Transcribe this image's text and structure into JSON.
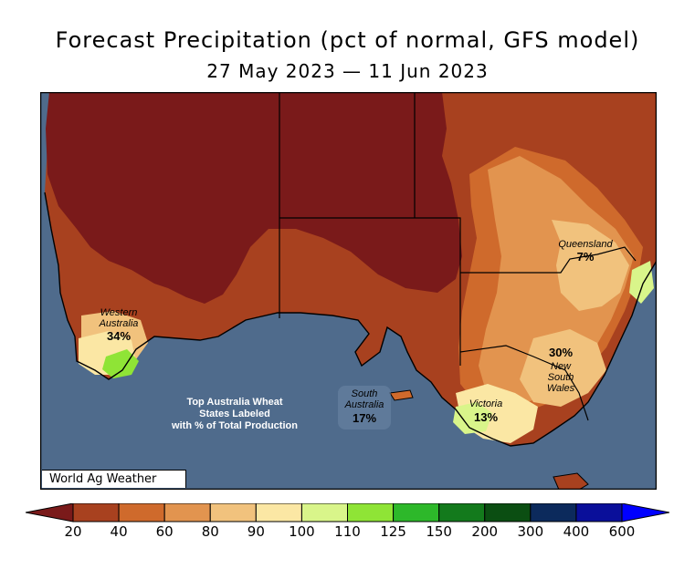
{
  "title": "Forecast Precipitation (pct of normal, GFS model)",
  "subtitle": "27 May 2023 — 11 Jun 2023",
  "credit": "World Ag Weather",
  "note_lines": [
    "Top Australia Wheat",
    "States Labeled",
    "with % of Total Production"
  ],
  "states": {
    "western_australia": {
      "name_lines": [
        "Western",
        "Australia"
      ],
      "pct": "34%"
    },
    "queensland": {
      "name_lines": [
        "Queensland"
      ],
      "pct": "7%"
    },
    "new_south_wales": {
      "name_lines": [
        "New",
        "South",
        "Wales"
      ],
      "pct": "30%"
    },
    "victoria": {
      "name_lines": [
        "Victoria"
      ],
      "pct": "13%"
    },
    "south_australia": {
      "name_lines": [
        "South",
        "Australia"
      ],
      "pct": "17%"
    }
  },
  "legend": {
    "ticks": [
      "20",
      "40",
      "60",
      "80",
      "90",
      "100",
      "110",
      "125",
      "150",
      "200",
      "300",
      "400",
      "600"
    ],
    "colors": [
      "#7a1a1a",
      "#a8411f",
      "#cf6a2c",
      "#e2944f",
      "#f1c27d",
      "#fbe7a4",
      "#d9f58a",
      "#8fe436",
      "#2db82a",
      "#137a1c",
      "#0b4e12",
      "#0c2a5c",
      "#0a0f9a",
      "#0000ff"
    ]
  },
  "colors": {
    "ocean": "#4f6b8c",
    "dark_red": "#7a1a1a",
    "red_brown": "#a8411f",
    "orange": "#cf6a2c",
    "light_orange": "#e2944f",
    "tan": "#f1c27d",
    "cream": "#fbe7a4",
    "light_green": "#d9f58a",
    "green": "#8fe436"
  }
}
